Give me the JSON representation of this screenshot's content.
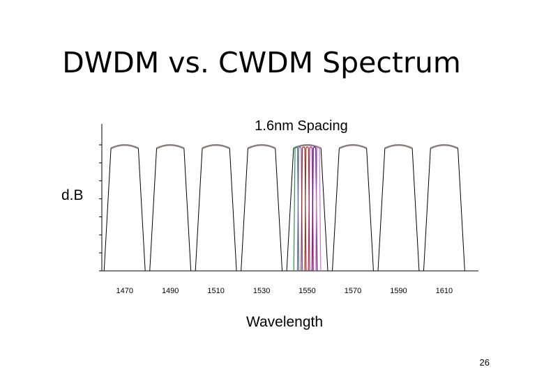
{
  "slide": {
    "title": "DWDM vs. CWDM Spectrum",
    "page_number": "26"
  },
  "chart_data": {
    "type": "line",
    "title": "1.6nm Spacing",
    "xlabel": "Wavelength",
    "ylabel": "d.B",
    "x_ticks": [
      "1470",
      "1490",
      "1510",
      "1530",
      "1550",
      "1570",
      "1590",
      "1610"
    ],
    "xlim": [
      1460,
      1625
    ],
    "cwdm_channels": [
      1470,
      1490,
      1510,
      1530,
      1550,
      1570,
      1590,
      1610
    ],
    "cwdm_passband_top_nm": 12,
    "cwdm_passband_bottom_nm": 18,
    "dwdm_channel_centers": [
      1545.2,
      1546.8,
      1548.4,
      1550.0,
      1551.6,
      1553.2,
      1554.8
    ],
    "dwdm_colors": [
      "#2e8b57",
      "#6a5acd",
      "#b22222",
      "#8b4513",
      "#c71585",
      "#4b0082",
      "#da70d6"
    ],
    "colors": {
      "cwdm_line": "#000000",
      "cwdm_cap": "#8a7f7f",
      "axis": "#000000"
    }
  }
}
